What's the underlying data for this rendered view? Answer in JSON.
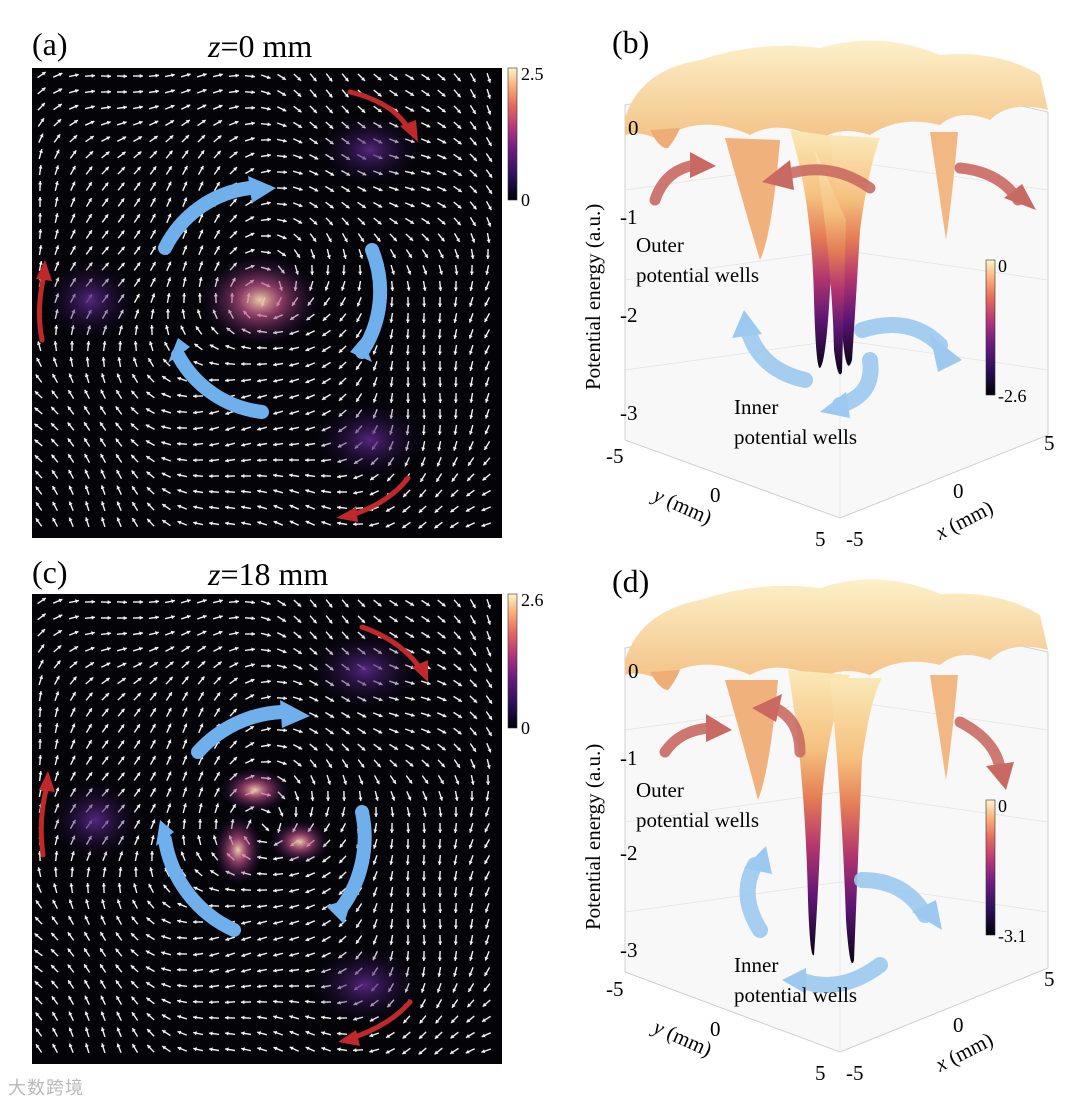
{
  "figure": {
    "panels": [
      {
        "id": "a",
        "label": "(a)",
        "title_var": "z",
        "title_rest": "=0 mm",
        "colorbar": {
          "max": "2.5",
          "min": "0"
        }
      },
      {
        "id": "b",
        "label": "(b)",
        "zlabel": "Potential energy (a.u.)",
        "zticks": [
          "0",
          "-1",
          "-2",
          "-3"
        ],
        "xlabel_var": "x",
        "xlabel_unit": " (mm)",
        "ylabel_var": "y",
        "ylabel_unit": " (mm)",
        "xticks": [
          "-5",
          "0",
          "5"
        ],
        "yticks": [
          "-5",
          "0",
          "5"
        ],
        "colorbar": {
          "max": "0",
          "min": "-2.6"
        },
        "outer_label": [
          "Outer",
          "potential wells"
        ],
        "inner_label": [
          "Inner",
          "potential wells"
        ]
      },
      {
        "id": "c",
        "label": "(c)",
        "title_var": "z",
        "title_rest": "=18 mm",
        "colorbar": {
          "max": "2.6",
          "min": "0"
        }
      },
      {
        "id": "d",
        "label": "(d)",
        "zlabel": "Potential energy (a.u.)",
        "zticks": [
          "0",
          "-1",
          "-2",
          "-3"
        ],
        "xlabel_var": "x",
        "xlabel_unit": " (mm)",
        "ylabel_var": "y",
        "ylabel_unit": " (mm)",
        "xticks": [
          "-5",
          "0",
          "5"
        ],
        "yticks": [
          "-5",
          "0",
          "5"
        ],
        "colorbar": {
          "max": "0",
          "min": "-3.1"
        },
        "outer_label": [
          "Outer",
          "potential wells"
        ],
        "inner_label": [
          "Inner",
          "potential wells"
        ]
      }
    ]
  },
  "colors": {
    "inner_arrow": "#6fb0ec",
    "outer_arrow": "#c0282a",
    "outer_arrow_3d": "#c96a62",
    "field_bg": "#030308"
  },
  "watermark": "大数跨境"
}
